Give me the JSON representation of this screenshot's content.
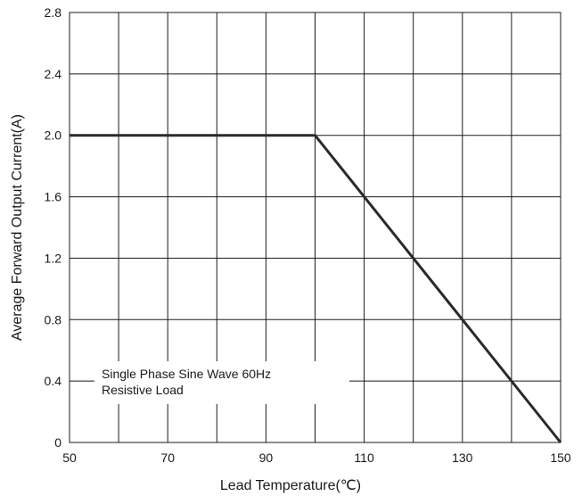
{
  "chart_data": {
    "type": "line",
    "title": "",
    "xlabel": "Lead Temperature(℃)",
    "ylabel": "Average Forward Output Current(A)",
    "xlim": [
      50,
      150
    ],
    "ylim": [
      0,
      2.8
    ],
    "x_ticks": [
      50,
      70,
      90,
      110,
      130,
      150
    ],
    "x_tick_labels": [
      "50",
      "70",
      "90",
      "110",
      "130",
      "150"
    ],
    "y_ticks": [
      0,
      0.4,
      0.8,
      1.2,
      1.6,
      2.0,
      2.4,
      2.8
    ],
    "y_tick_labels": [
      "0",
      "0.4",
      "0.8",
      "1.2",
      "1.6",
      "2.0",
      "2.4",
      "2.8"
    ],
    "grid": true,
    "series": [
      {
        "x": [
          50,
          100,
          150
        ],
        "y": [
          2.0,
          2.0,
          0
        ]
      }
    ],
    "annotation": {
      "lines": [
        "Single Phase Sine Wave 60Hz",
        "Resistive Load"
      ]
    },
    "line_color": "#2a2a2a",
    "grid_color": "#1a1a1a"
  }
}
